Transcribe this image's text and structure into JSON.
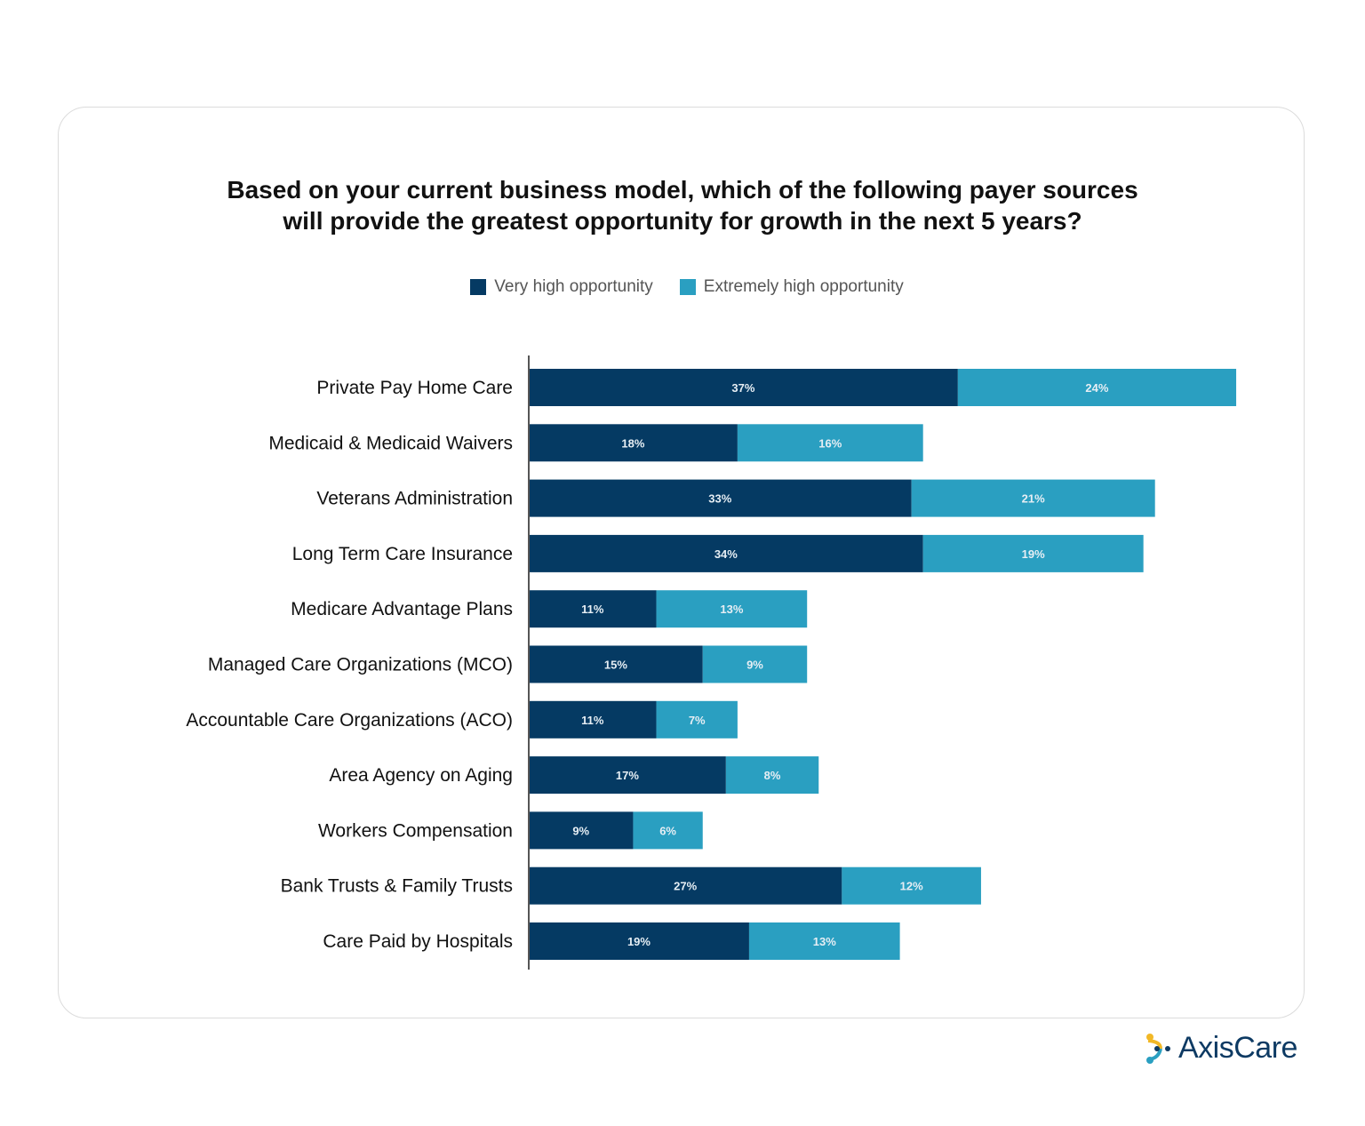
{
  "chart_data": {
    "type": "bar",
    "orientation": "horizontal",
    "stacked": true,
    "title": "Based on your current business model, which of the following payer sources will provide the greatest opportunity for growth in the next 5 years?",
    "title_lines": [
      "Based on your current business model, which of the following payer sources",
      "will provide the greatest opportunity for growth in the next 5 years?"
    ],
    "legend_placement": "top",
    "grid": false,
    "categories": [
      "Private Pay Home Care",
      "Medicaid & Medicaid Waivers",
      "Veterans Administration",
      "Long Term Care Insurance",
      "Medicare Advantage Plans",
      "Managed Care Organizations (MCO)",
      "Accountable Care Organizations (ACO)",
      "Area Agency on Aging",
      "Workers Compensation",
      "Bank Trusts & Family Trusts",
      "Care Paid by Hospitals"
    ],
    "series": [
      {
        "name": "Very high opportunity",
        "color": "#053a63",
        "values": [
          37,
          18,
          33,
          34,
          11,
          15,
          11,
          17,
          9,
          27,
          19
        ]
      },
      {
        "name": "Extremely high opportunity",
        "color": "#2a9fc1",
        "values": [
          24,
          16,
          21,
          19,
          13,
          9,
          7,
          8,
          6,
          12,
          13
        ]
      }
    ],
    "value_suffix": "%"
  },
  "brand": {
    "name": "AxisCare"
  }
}
